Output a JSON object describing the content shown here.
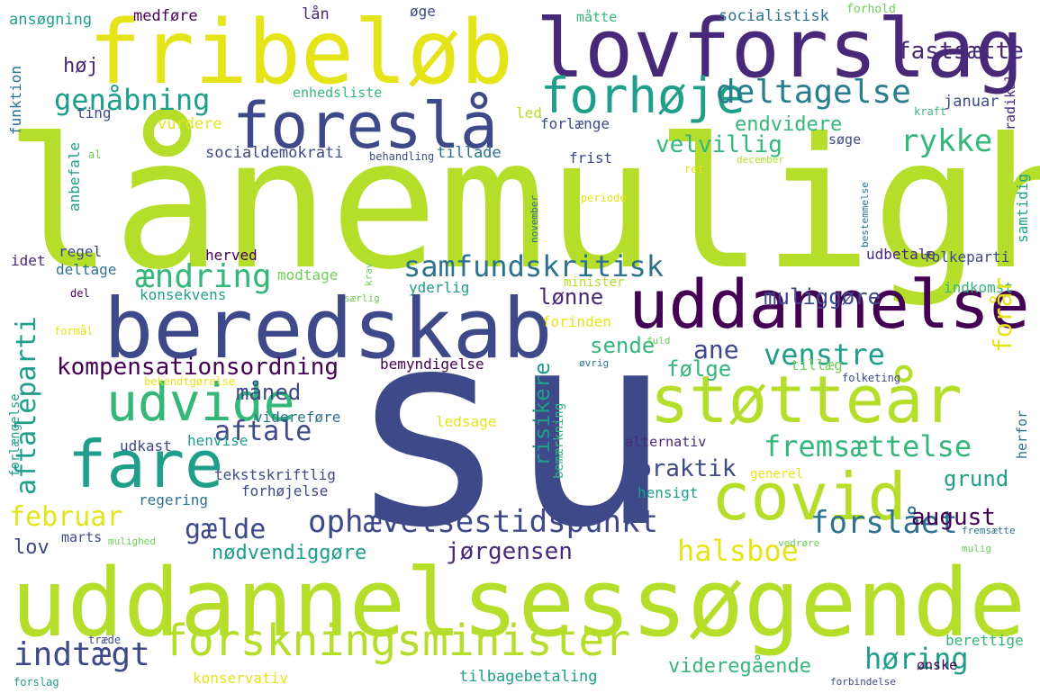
{
  "palette": {
    "background": "#ffffff",
    "lime": "#b5de2b",
    "yellow": "#e5e419",
    "green": "#6ece58",
    "teal": "#1f9e89",
    "darkblue": "#3e4989",
    "purple": "#482878",
    "darkpurple": "#440154"
  },
  "words": [
    "lånemulighed",
    "su",
    "uddannelsessøgende",
    "beredskab",
    "lovforslag",
    "fribeløb",
    "uddannelse",
    "foreslå",
    "covid",
    "støtteår",
    "fare",
    "forskningsminister",
    "forhøje",
    "udvide",
    "samfundskritisk",
    "ophævelsestidspunkt",
    "deltagelse",
    "genåbning",
    "fremsættelse",
    "aftaleparti",
    "kompensationsordning",
    "ændring",
    "februar",
    "indtægt",
    "halsboe",
    "høring",
    "forslået",
    "rykke",
    "venstre",
    "aftale",
    "gælde",
    "risikere",
    "jørgensen",
    "august",
    "praktik",
    "fastsætte",
    "velvillig",
    "ane",
    "forår",
    "muliggøre",
    "sende",
    "følge",
    "grund",
    "lønne",
    "måned",
    "nødvendiggøre",
    "videregående",
    "endvidere",
    "høj",
    "lov",
    "medføre",
    "ansøgning",
    "lån",
    "øge",
    "måtte",
    "socialistisk",
    "forhold",
    "funktion",
    "enhedsliste",
    "ting",
    "vurdere",
    "led",
    "forlænge",
    "januar",
    "kraft",
    "radikal",
    "søge",
    "socialdemokrati",
    "behandling",
    "tillade",
    "frist",
    "december",
    "ret",
    "al",
    "anbefale",
    "periode",
    "november",
    "bestemmelse",
    "samtidig",
    "regel",
    "herved",
    "udbetale",
    "folkeparti",
    "idet",
    "deltage",
    "modtage",
    "krav",
    "minister",
    "del",
    "konsekvens",
    "særlig",
    "yderlig",
    "indkomst",
    "formål",
    "forinden",
    "fuld",
    "tillæg",
    "bemyndigelse",
    "øvrig",
    "bekendtgørelse",
    "folketing",
    "forlængelse",
    "videreføre",
    "ledsage",
    "bemærkning",
    "herfor",
    "udkast",
    "henvise",
    "alternativ",
    "tekstskriftlig",
    "generel",
    "regering",
    "forhøjelse",
    "hensigt",
    "marts",
    "mulighed",
    "vedrøre",
    "mulig",
    "fremsætte",
    "træde",
    "berettige",
    "konservativ",
    "tilbagebetaling",
    "ønske",
    "forslag",
    "forbindelse"
  ]
}
